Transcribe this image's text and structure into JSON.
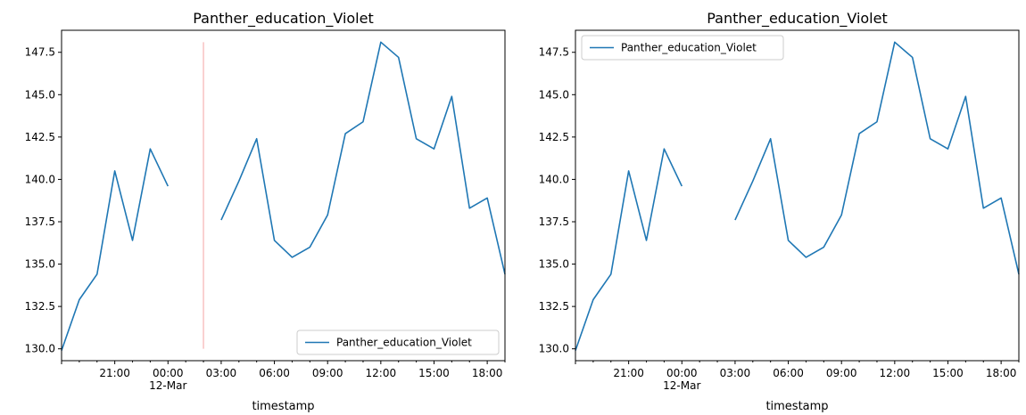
{
  "chart_data": [
    {
      "type": "line",
      "title": "Panther_education_Violet",
      "xlabel": "timestamp",
      "ylabel": "",
      "x_tick_labels": [
        "21:00",
        "00:00\n12-Mar",
        "03:00",
        "06:00",
        "09:00",
        "12:00",
        "15:00",
        "18:00"
      ],
      "y_tick_labels": [
        "130.0",
        "132.5",
        "135.0",
        "137.5",
        "140.0",
        "142.5",
        "145.0",
        "147.5"
      ],
      "x_range_hours": [
        -6,
        19
      ],
      "ylim": [
        129.3,
        148.8
      ],
      "legend_position": "lower right",
      "grid": false,
      "annotation": {
        "type": "vertical-line",
        "at_hours": 2,
        "y_from": 130.0,
        "y_to": 148.1,
        "color": "#f4a3a3"
      },
      "series": [
        {
          "name": "Panther_education_Violet",
          "color": "#1f77b4",
          "x_hours": [
            -6,
            -5,
            -4,
            -3,
            -2,
            -1,
            0,
            1,
            3,
            4,
            5,
            6,
            7,
            8,
            9,
            10,
            11,
            12,
            13,
            14,
            15,
            16,
            17,
            18,
            19
          ],
          "x_labels": [
            "11-Mar 18:00",
            "11-Mar 19:00",
            "11-Mar 20:00",
            "11-Mar 21:00",
            "11-Mar 22:00",
            "11-Mar 23:00",
            "12-Mar 00:00",
            "12-Mar 01:00",
            "12-Mar 03:00",
            "12-Mar 04:00",
            "12-Mar 05:00",
            "12-Mar 06:00",
            "12-Mar 07:00",
            "12-Mar 08:00",
            "12-Mar 09:00",
            "12-Mar 10:00",
            "12-Mar 11:00",
            "12-Mar 12:00",
            "12-Mar 13:00",
            "12-Mar 14:00",
            "12-Mar 15:00",
            "12-Mar 16:00",
            "12-Mar 17:00",
            "12-Mar 18:00",
            "12-Mar 19:00"
          ],
          "values": [
            129.9,
            132.9,
            134.4,
            140.5,
            136.4,
            141.8,
            139.6,
            null,
            137.6,
            139.9,
            142.4,
            136.4,
            135.4,
            136.0,
            137.9,
            142.7,
            143.4,
            148.1,
            147.2,
            142.4,
            141.8,
            144.9,
            138.3,
            138.9,
            134.4
          ]
        }
      ]
    },
    {
      "type": "line",
      "title": "Panther_education_Violet",
      "xlabel": "timestamp",
      "ylabel": "",
      "x_tick_labels": [
        "21:00",
        "00:00\n12-Mar",
        "03:00",
        "06:00",
        "09:00",
        "12:00",
        "15:00",
        "18:00"
      ],
      "y_tick_labels": [
        "130.0",
        "132.5",
        "135.0",
        "137.5",
        "140.0",
        "142.5",
        "145.0",
        "147.5"
      ],
      "x_range_hours": [
        -6,
        19
      ],
      "ylim": [
        129.3,
        148.8
      ],
      "legend_position": "upper left",
      "grid": false,
      "series": [
        {
          "name": "Panther_education_Violet",
          "color": "#1f77b4",
          "x_hours": [
            -6,
            -5,
            -4,
            -3,
            -2,
            -1,
            0,
            1,
            3,
            4,
            5,
            6,
            7,
            8,
            9,
            10,
            11,
            12,
            13,
            14,
            15,
            16,
            17,
            18,
            19
          ],
          "x_labels": [
            "11-Mar 18:00",
            "11-Mar 19:00",
            "11-Mar 20:00",
            "11-Mar 21:00",
            "11-Mar 22:00",
            "11-Mar 23:00",
            "12-Mar 00:00",
            "12-Mar 01:00",
            "12-Mar 03:00",
            "12-Mar 04:00",
            "12-Mar 05:00",
            "12-Mar 06:00",
            "12-Mar 07:00",
            "12-Mar 08:00",
            "12-Mar 09:00",
            "12-Mar 10:00",
            "12-Mar 11:00",
            "12-Mar 12:00",
            "12-Mar 13:00",
            "12-Mar 14:00",
            "12-Mar 15:00",
            "12-Mar 16:00",
            "12-Mar 17:00",
            "12-Mar 18:00",
            "12-Mar 19:00"
          ],
          "values": [
            129.9,
            132.9,
            134.4,
            140.5,
            136.4,
            141.8,
            139.6,
            null,
            137.6,
            139.9,
            142.4,
            136.4,
            135.4,
            136.0,
            137.9,
            142.7,
            143.4,
            148.1,
            147.2,
            142.4,
            141.8,
            144.9,
            138.3,
            138.9,
            134.4
          ]
        }
      ]
    }
  ]
}
